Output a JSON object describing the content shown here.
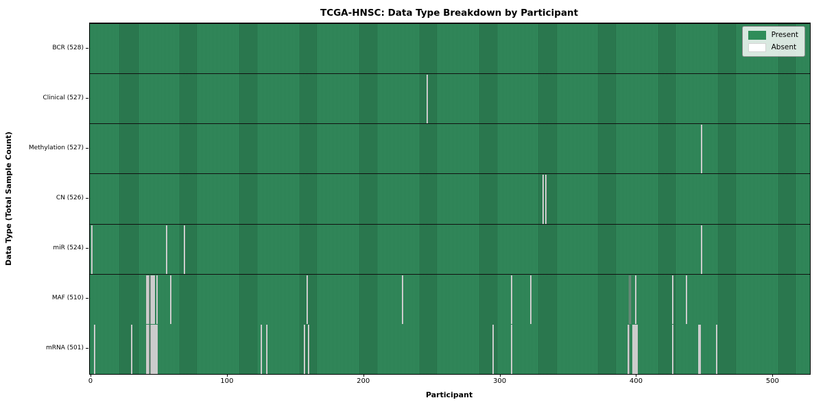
{
  "title": "TCGA-HNSC: Data Type Breakdown by Participant",
  "axes": {
    "xlabel": "Participant",
    "ylabel": "Data Type (Total Sample Count)"
  },
  "legend": {
    "present": "Present",
    "absent": "Absent"
  },
  "colors": {
    "present": "#2f8d59",
    "present_dark_edge": "#1f5c3b",
    "absent": "#ffffff",
    "axis": "#000000"
  },
  "chart_data": {
    "type": "heatmap",
    "title": "TCGA-HNSC: Data Type Breakdown by Participant",
    "xlabel": "Participant",
    "ylabel": "Data Type (Total Sample Count)",
    "legend": [
      "Present",
      "Absent"
    ],
    "legend_position": "upper right",
    "grid": false,
    "n_participants": 528,
    "x_ticks": [
      0,
      100,
      200,
      300,
      400,
      500
    ],
    "x_range": [
      -0.5,
      527.5
    ],
    "cell_states": {
      "present": 1,
      "absent": 0
    },
    "rows": [
      {
        "name": "BCR",
        "label": "BCR (528)",
        "total": 528,
        "absent_count": 0,
        "absent_participants": []
      },
      {
        "name": "Clinical",
        "label": "Clinical (527)",
        "total": 527,
        "absent_count": 1,
        "absent_participants": [
          247
        ]
      },
      {
        "name": "Methylation",
        "label": "Methylation (527)",
        "total": 527,
        "absent_count": 1,
        "absent_participants": [
          448
        ]
      },
      {
        "name": "CN",
        "label": "CN (526)",
        "total": 526,
        "absent_count": 2,
        "absent_participants": [
          332,
          334
        ]
      },
      {
        "name": "miR",
        "label": "miR (524)",
        "total": 524,
        "absent_count": 4,
        "absent_participants": [
          1,
          56,
          69,
          448
        ]
      },
      {
        "name": "MAF",
        "label": "MAF (510)",
        "total": 510,
        "absent_count": 18,
        "absent_participants": [
          41,
          42,
          43,
          44,
          45,
          46,
          47,
          49,
          59,
          159,
          229,
          309,
          323,
          395,
          396,
          400,
          427,
          437
        ]
      },
      {
        "name": "mRNA",
        "label": "mRNA (501)",
        "total": 501,
        "absent_count": 27,
        "absent_participants": [
          3,
          30,
          41,
          42,
          43,
          44,
          45,
          46,
          47,
          48,
          49,
          125,
          129,
          157,
          160,
          295,
          309,
          394,
          395,
          398,
          399,
          400,
          401,
          427,
          446,
          447,
          459
        ]
      }
    ]
  }
}
